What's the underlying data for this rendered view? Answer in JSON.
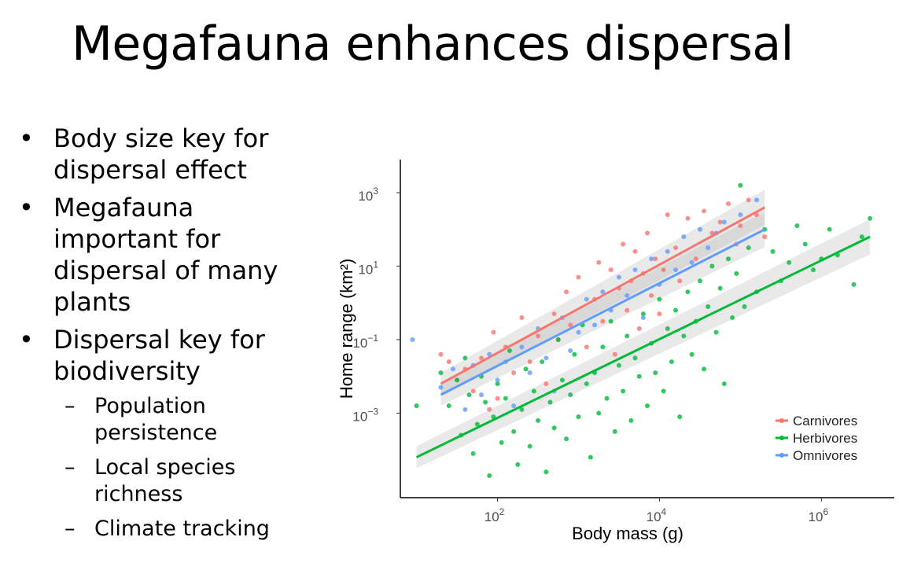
{
  "slide": {
    "title": "Megafauna enhances dispersal",
    "bullets": [
      {
        "text": "Body size key for dispersal effect"
      },
      {
        "text": "Megafauna important for dispersal of many plants"
      },
      {
        "text": "Dispersal key for biodiversity",
        "sub": [
          "Population persistence",
          "Local species richness",
          "Climate tracking"
        ]
      }
    ]
  },
  "chart_data": {
    "type": "scatter",
    "title": "",
    "xlabel": "Body mass (g)",
    "ylabel": "Home range (km²)",
    "xscale": "log",
    "yscale": "log",
    "xlim_log10": [
      0.8,
      6.9
    ],
    "ylim_log10": [
      -5.3,
      3.9
    ],
    "xticks": [
      {
        "value": 2,
        "label": "10",
        "exp": "2"
      },
      {
        "value": 4,
        "label": "10",
        "exp": "4"
      },
      {
        "value": 6,
        "label": "10",
        "exp": "6"
      }
    ],
    "yticks": [
      {
        "value": 3,
        "label": "10",
        "exp": "3"
      },
      {
        "value": 1,
        "label": "10",
        "exp": "1"
      },
      {
        "value": -1,
        "label": "10",
        "exp": "−1"
      },
      {
        "value": -3,
        "label": "10",
        "exp": "−3"
      }
    ],
    "legend_position": "bottom-right",
    "grid": false,
    "series": [
      {
        "name": "Carnivores",
        "color": "#F8766D",
        "fit_log10": {
          "x": [
            1.3,
            5.3
          ],
          "y": [
            -2.2,
            2.6
          ]
        },
        "points_log10": [
          [
            1.3,
            -1.4
          ],
          [
            1.4,
            -1.6
          ],
          [
            1.5,
            -2.1
          ],
          [
            1.6,
            -1.8
          ],
          [
            1.7,
            -2.4
          ],
          [
            1.8,
            -1.5
          ],
          [
            1.9,
            -2.9
          ],
          [
            1.95,
            -0.8
          ],
          [
            2.0,
            -2.6
          ],
          [
            2.1,
            -1.2
          ],
          [
            2.2,
            -1.9
          ],
          [
            2.3,
            -0.4
          ],
          [
            2.4,
            -1.6
          ],
          [
            2.5,
            -0.9
          ],
          [
            2.6,
            -2.2
          ],
          [
            2.7,
            -0.3
          ],
          [
            2.75,
            -1.0
          ],
          [
            2.85,
            0.3
          ],
          [
            2.9,
            -0.6
          ],
          [
            3.0,
            0.7
          ],
          [
            3.1,
            -1.2
          ],
          [
            3.2,
            0.1
          ],
          [
            3.25,
            1.1
          ],
          [
            3.3,
            -0.5
          ],
          [
            3.4,
            0.9
          ],
          [
            3.45,
            -1.4
          ],
          [
            3.5,
            0.4
          ],
          [
            3.55,
            1.6
          ],
          [
            3.6,
            -0.2
          ],
          [
            3.65,
            0.6
          ],
          [
            3.7,
            1.4
          ],
          [
            3.75,
            -0.7
          ],
          [
            3.8,
            0.8
          ],
          [
            3.85,
            1.9
          ],
          [
            3.9,
            0.2
          ],
          [
            3.95,
            1.2
          ],
          [
            4.0,
            -0.3
          ],
          [
            4.05,
            0.9
          ],
          [
            4.1,
            2.4
          ],
          [
            4.2,
            1.5
          ],
          [
            4.25,
            0.6
          ],
          [
            4.35,
            2.3
          ],
          [
            4.45,
            1.2
          ],
          [
            4.55,
            2.5
          ],
          [
            4.65,
            1.9
          ],
          [
            4.75,
            2.2
          ],
          [
            4.85,
            2.7
          ],
          [
            4.95,
            1.6
          ],
          [
            5.0,
            2.1
          ],
          [
            5.1,
            2.8
          ],
          [
            5.2,
            2.4
          ],
          [
            5.3,
            1.8
          ]
        ]
      },
      {
        "name": "Herbivores",
        "color": "#00BA38",
        "fit_log10": {
          "x": [
            1.0,
            6.6
          ],
          "y": [
            -4.2,
            1.8
          ]
        },
        "points_log10": [
          [
            1.0,
            -2.8
          ],
          [
            1.3,
            -1.9
          ],
          [
            1.4,
            -2.8
          ],
          [
            1.5,
            -2.1
          ],
          [
            1.55,
            -3.6
          ],
          [
            1.6,
            -1.5
          ],
          [
            1.65,
            -2.5
          ],
          [
            1.7,
            -4.1
          ],
          [
            1.75,
            -3.3
          ],
          [
            1.8,
            -2.0
          ],
          [
            1.85,
            -2.7
          ],
          [
            1.9,
            -4.7
          ],
          [
            1.95,
            -3.1
          ],
          [
            2.0,
            -2.2
          ],
          [
            2.05,
            -3.8
          ],
          [
            2.1,
            -2.6
          ],
          [
            2.15,
            -1.3
          ],
          [
            2.2,
            -3.5
          ],
          [
            2.25,
            -4.4
          ],
          [
            2.3,
            -2.9
          ],
          [
            2.35,
            -1.8
          ],
          [
            2.4,
            -3.9
          ],
          [
            2.45,
            -2.4
          ],
          [
            2.5,
            -3.2
          ],
          [
            2.55,
            -1.6
          ],
          [
            2.6,
            -4.6
          ],
          [
            2.65,
            -2.7
          ],
          [
            2.7,
            -3.4
          ],
          [
            2.75,
            -1.0
          ],
          [
            2.8,
            -2.1
          ],
          [
            2.85,
            -3.7
          ],
          [
            2.9,
            -2.5
          ],
          [
            2.95,
            -1.4
          ],
          [
            3.0,
            -3.1
          ],
          [
            3.05,
            -0.6
          ],
          [
            3.1,
            -2.2
          ],
          [
            3.15,
            -4.2
          ],
          [
            3.2,
            -1.9
          ],
          [
            3.25,
            -3.0
          ],
          [
            3.3,
            -1.2
          ],
          [
            3.35,
            -2.6
          ],
          [
            3.4,
            -0.5
          ],
          [
            3.45,
            -3.5
          ],
          [
            3.5,
            -1.7
          ],
          [
            3.55,
            -2.4
          ],
          [
            3.6,
            -0.9
          ],
          [
            3.65,
            -3.2
          ],
          [
            3.7,
            -1.5
          ],
          [
            3.75,
            -2.0
          ],
          [
            3.8,
            -0.3
          ],
          [
            3.85,
            -2.8
          ],
          [
            3.9,
            -1.1
          ],
          [
            3.95,
            -1.9
          ],
          [
            4.0,
            0.1
          ],
          [
            4.05,
            -2.4
          ],
          [
            4.1,
            -0.7
          ],
          [
            4.15,
            -1.6
          ],
          [
            4.2,
            -0.2
          ],
          [
            4.25,
            -3.1
          ],
          [
            4.3,
            -0.9
          ],
          [
            4.35,
            0.3
          ],
          [
            4.4,
            -1.4
          ],
          [
            4.45,
            -0.5
          ],
          [
            4.5,
            0.6
          ],
          [
            4.55,
            -1.8
          ],
          [
            4.6,
            -0.1
          ],
          [
            4.65,
            1.0
          ],
          [
            4.7,
            -0.8
          ],
          [
            4.75,
            0.4
          ],
          [
            4.8,
            -2.2
          ],
          [
            4.85,
            1.2
          ],
          [
            4.9,
            -0.4
          ],
          [
            4.95,
            0.8
          ],
          [
            5.0,
            3.2
          ],
          [
            5.05,
            -0.1
          ],
          [
            5.1,
            1.5
          ],
          [
            5.2,
            0.3
          ],
          [
            5.3,
            2.0
          ],
          [
            5.4,
            1.4
          ],
          [
            5.5,
            0.6
          ],
          [
            5.6,
            1.1
          ],
          [
            5.7,
            2.1
          ],
          [
            5.8,
            1.6
          ],
          [
            5.9,
            0.9
          ],
          [
            6.0,
            1.2
          ],
          [
            6.1,
            2.0
          ],
          [
            6.2,
            1.3
          ],
          [
            6.4,
            0.5
          ],
          [
            6.5,
            1.8
          ],
          [
            6.6,
            2.3
          ]
        ]
      },
      {
        "name": "Omnivores",
        "color": "#619CFF",
        "fit_log10": {
          "x": [
            1.3,
            5.3
          ],
          "y": [
            -2.5,
            2.0
          ]
        },
        "points_log10": [
          [
            0.95,
            -1.0
          ],
          [
            1.3,
            -2.3
          ],
          [
            1.45,
            -1.8
          ],
          [
            1.6,
            -2.9
          ],
          [
            1.7,
            -1.7
          ],
          [
            1.8,
            -2.5
          ],
          [
            1.9,
            -1.4
          ],
          [
            2.0,
            -2.1
          ],
          [
            2.1,
            -1.6
          ],
          [
            2.2,
            -2.8
          ],
          [
            2.3,
            -1.2
          ],
          [
            2.4,
            -1.9
          ],
          [
            2.5,
            -0.7
          ],
          [
            2.6,
            -1.5
          ],
          [
            2.7,
            -2.4
          ],
          [
            2.8,
            -0.4
          ],
          [
            2.9,
            -1.3
          ],
          [
            3.0,
            -0.8
          ],
          [
            3.1,
            0.1
          ],
          [
            3.2,
            -0.6
          ],
          [
            3.3,
            0.3
          ],
          [
            3.4,
            -0.2
          ],
          [
            3.5,
            0.7
          ],
          [
            3.6,
            0.2
          ],
          [
            3.7,
            0.9
          ],
          [
            3.8,
            -0.4
          ],
          [
            3.9,
            1.2
          ],
          [
            4.0,
            0.5
          ],
          [
            4.1,
            1.4
          ],
          [
            4.2,
            0.9
          ],
          [
            4.3,
            1.8
          ],
          [
            4.4,
            1.1
          ],
          [
            4.5,
            2.0
          ],
          [
            4.6,
            1.5
          ],
          [
            4.7,
            1.9
          ],
          [
            4.8,
            2.2
          ],
          [
            5.0,
            2.4
          ],
          [
            5.2,
            2.8
          ]
        ]
      }
    ]
  }
}
